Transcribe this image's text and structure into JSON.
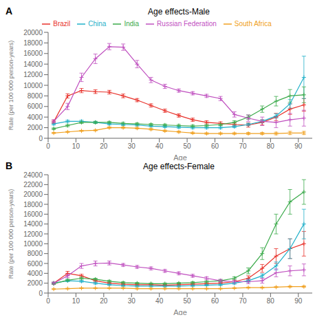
{
  "chart_data": [
    {
      "type": "line",
      "title": "Age effects-Male",
      "annotations": [
        "A"
      ],
      "x_label": "Age",
      "y_label": "Rate (per 100 000 person-years)",
      "x": [
        2,
        7,
        12,
        17,
        22,
        27,
        32,
        37,
        42,
        47,
        52,
        57,
        62,
        67,
        72,
        77,
        82,
        87,
        92
      ],
      "series": [
        {
          "name": "Brazil",
          "color": "#e8312a",
          "values": [
            3100,
            8000,
            9000,
            8800,
            8700,
            8000,
            7200,
            6200,
            5200,
            4300,
            3500,
            3000,
            2800,
            2600,
            2500,
            3000,
            4000,
            5500,
            6300
          ],
          "errors": [
            300,
            400,
            400,
            350,
            350,
            350,
            300,
            300,
            300,
            300,
            300,
            300,
            300,
            300,
            400,
            500,
            700,
            1000,
            1200
          ]
        },
        {
          "name": "China",
          "color": "#1fb0c9",
          "values": [
            2700,
            3200,
            3200,
            3000,
            2700,
            2600,
            2500,
            2300,
            2200,
            2100,
            2000,
            2000,
            2000,
            2200,
            2600,
            3200,
            4200,
            6500,
            11500
          ],
          "errors": [
            200,
            200,
            200,
            200,
            200,
            200,
            200,
            200,
            200,
            200,
            200,
            200,
            200,
            200,
            200,
            300,
            400,
            800,
            4000
          ]
        },
        {
          "name": "India",
          "color": "#3aaa4a",
          "values": [
            1800,
            2400,
            3000,
            3000,
            3000,
            2800,
            2700,
            2600,
            2500,
            2400,
            2300,
            2400,
            2600,
            3000,
            4000,
            5500,
            7000,
            8000,
            8200
          ],
          "errors": [
            150,
            200,
            200,
            200,
            200,
            200,
            200,
            200,
            200,
            200,
            200,
            200,
            200,
            300,
            400,
            600,
            900,
            1200,
            1500
          ]
        },
        {
          "name": "Russian Federation",
          "color": "#bf4fbf",
          "values": [
            3200,
            6000,
            11500,
            15000,
            17300,
            17200,
            14000,
            11000,
            9800,
            9000,
            8500,
            8000,
            7500,
            4500,
            3800,
            3200,
            3000,
            3500,
            3800
          ],
          "errors": [
            300,
            600,
            800,
            900,
            600,
            600,
            700,
            500,
            400,
            300,
            300,
            300,
            400,
            500,
            600,
            800,
            1000,
            1200,
            1500
          ]
        },
        {
          "name": "South Africa",
          "color": "#f0a020",
          "values": [
            1000,
            1200,
            1400,
            1500,
            2000,
            2000,
            1900,
            1700,
            1400,
            1200,
            1000,
            900,
            900,
            900,
            900,
            900,
            900,
            1000,
            1000
          ],
          "errors": [
            100,
            100,
            100,
            100,
            150,
            150,
            150,
            150,
            150,
            150,
            150,
            150,
            150,
            150,
            200,
            200,
            250,
            300,
            300
          ]
        }
      ],
      "xlim": [
        0,
        95
      ],
      "xticks": [
        0,
        10,
        20,
        30,
        40,
        50,
        60,
        70,
        80,
        90
      ],
      "ylim": [
        0,
        20000
      ],
      "yticks": [
        0,
        2000,
        4000,
        6000,
        8000,
        10000,
        12000,
        14000,
        16000,
        18000,
        20000
      ],
      "marker": "plus",
      "grid": false,
      "legend": "top"
    },
    {
      "type": "line",
      "title": "Age effects-Female",
      "annotations": [
        "B"
      ],
      "x_label": "Age",
      "y_label": "Rate (per 100 000 person-years)",
      "x": [
        2,
        7,
        12,
        17,
        22,
        27,
        32,
        37,
        42,
        47,
        52,
        57,
        62,
        67,
        72,
        77,
        82,
        87,
        92
      ],
      "series": [
        {
          "name": "Brazil",
          "color": "#e8312a",
          "values": [
            2000,
            4000,
            3500,
            2500,
            2000,
            1800,
            1700,
            1700,
            1600,
            1700,
            1800,
            1900,
            2000,
            2300,
            3000,
            5000,
            7500,
            9000,
            10000
          ],
          "errors": [
            200,
            400,
            300,
            250,
            200,
            200,
            200,
            200,
            200,
            200,
            200,
            200,
            200,
            300,
            500,
            800,
            1500,
            2000,
            2500
          ]
        },
        {
          "name": "China",
          "color": "#1fb0c9",
          "values": [
            2000,
            2500,
            2400,
            2000,
            1700,
            1500,
            1400,
            1400,
            1400,
            1400,
            1500,
            1600,
            1700,
            2000,
            2500,
            3500,
            5500,
            9000,
            14000
          ],
          "errors": [
            200,
            200,
            200,
            200,
            150,
            150,
            150,
            150,
            150,
            150,
            150,
            150,
            200,
            200,
            300,
            400,
            800,
            2000,
            3000
          ]
        },
        {
          "name": "India",
          "color": "#3aaa4a",
          "values": [
            1900,
            2600,
            3000,
            2800,
            2400,
            2100,
            2000,
            1900,
            1900,
            2000,
            2100,
            2300,
            2500,
            3000,
            4500,
            8000,
            14000,
            18500,
            20500
          ],
          "errors": [
            150,
            200,
            200,
            200,
            200,
            200,
            150,
            150,
            150,
            150,
            200,
            200,
            200,
            300,
            600,
            1200,
            2000,
            2500,
            2500
          ]
        },
        {
          "name": "Russian Federation",
          "color": "#bf4fbf",
          "values": [
            2000,
            3500,
            5500,
            6000,
            6100,
            5700,
            5300,
            5000,
            4500,
            4000,
            3500,
            3000,
            2500,
            2300,
            2300,
            2500,
            4100,
            4500,
            4700
          ],
          "errors": [
            200,
            400,
            500,
            500,
            400,
            300,
            300,
            300,
            300,
            300,
            300,
            300,
            300,
            300,
            400,
            500,
            800,
            1000,
            1200
          ]
        },
        {
          "name": "South Africa",
          "color": "#f0a020",
          "values": [
            800,
            900,
            1000,
            1000,
            1000,
            1000,
            900,
            900,
            900,
            900,
            900,
            900,
            900,
            1000,
            1100,
            1100,
            1200,
            1300,
            1300
          ],
          "errors": [
            80,
            80,
            80,
            80,
            80,
            80,
            80,
            80,
            80,
            80,
            80,
            80,
            80,
            100,
            100,
            100,
            100,
            120,
            150
          ]
        }
      ],
      "xlim": [
        0,
        95
      ],
      "xticks": [
        0,
        10,
        20,
        30,
        40,
        50,
        60,
        70,
        80,
        90
      ],
      "ylim": [
        0,
        24000
      ],
      "yticks": [
        0,
        2000,
        4000,
        6000,
        8000,
        10000,
        12000,
        14000,
        16000,
        18000,
        20000,
        22000,
        24000
      ],
      "marker": "plus",
      "grid": false
    }
  ]
}
